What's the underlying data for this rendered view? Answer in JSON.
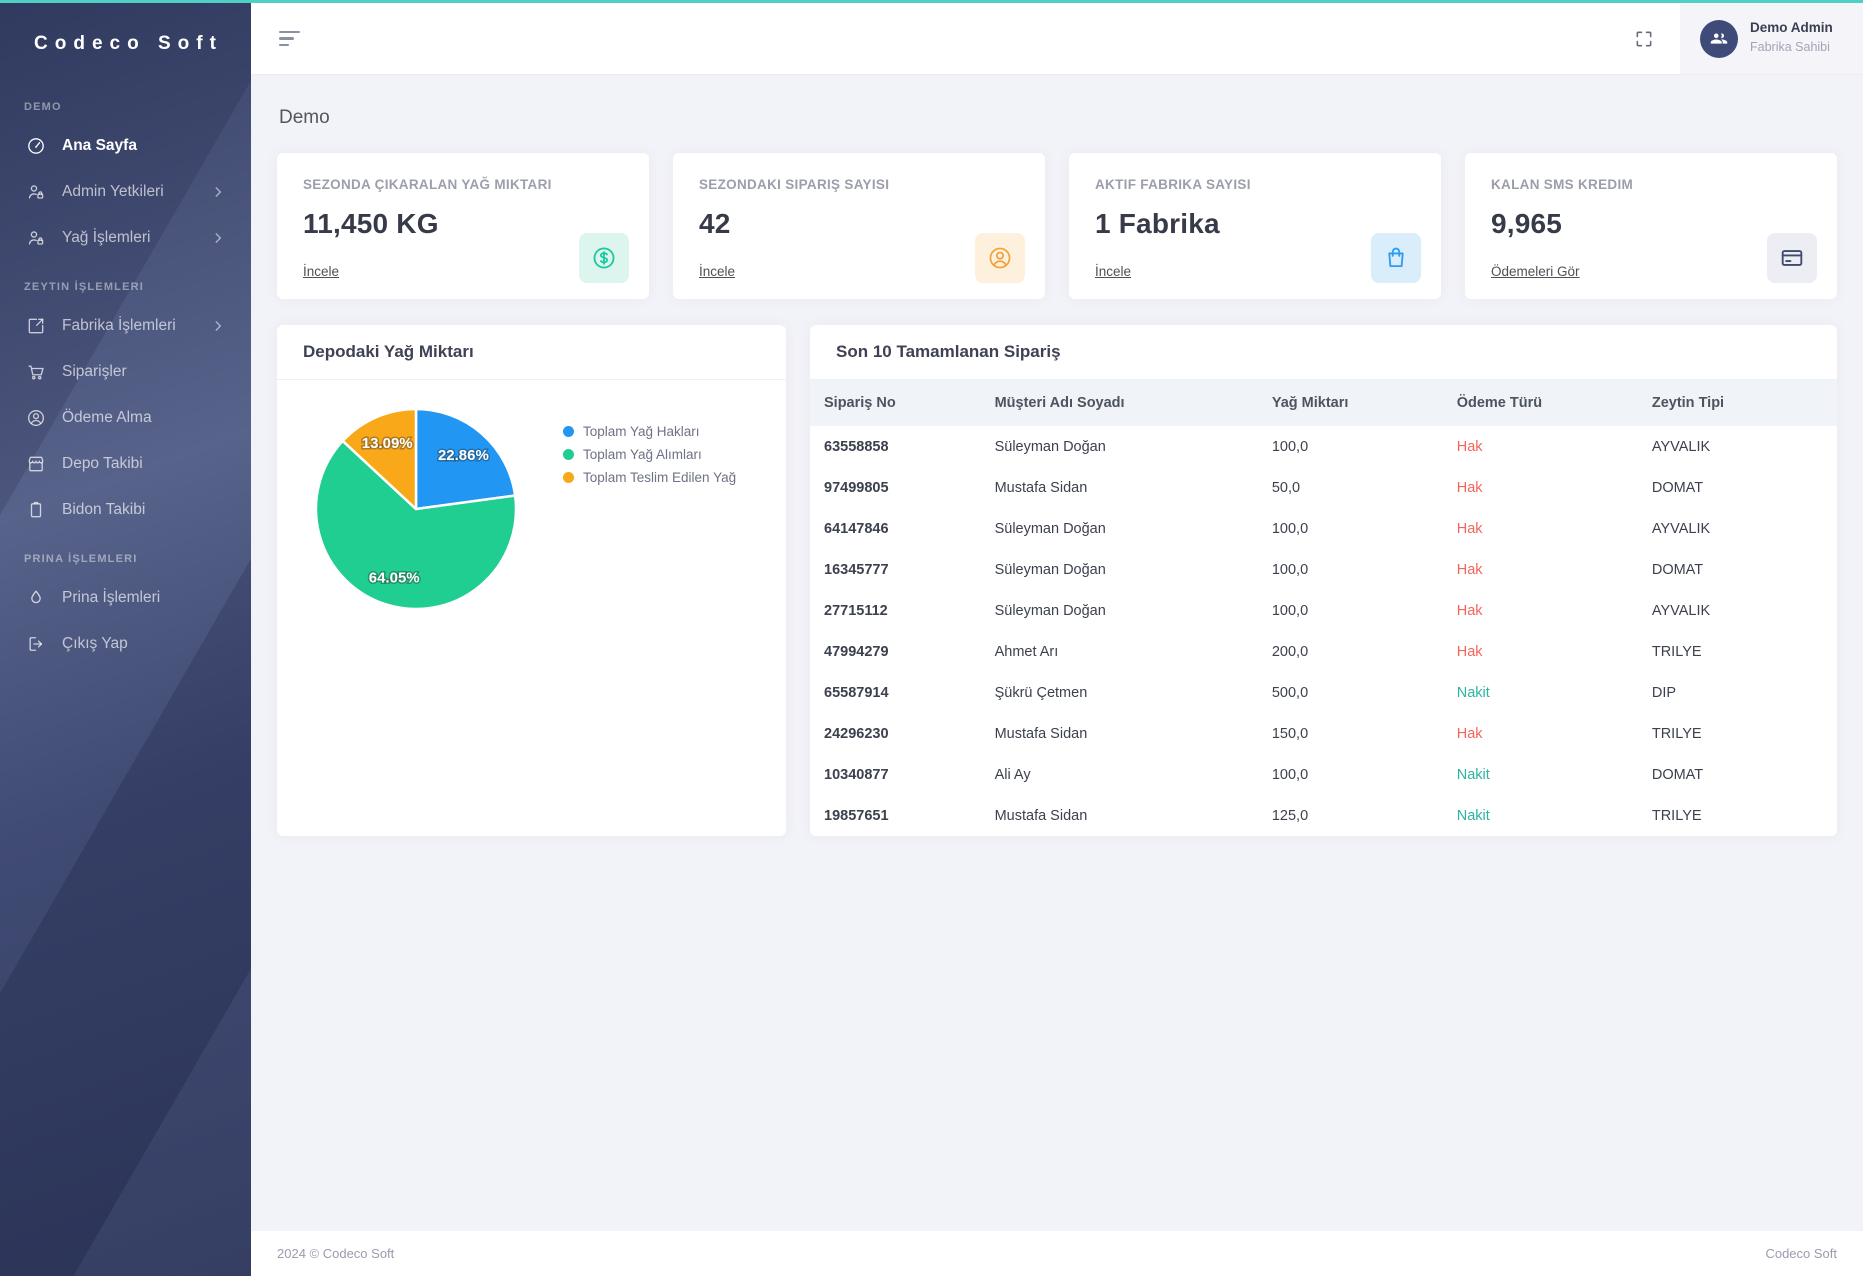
{
  "app": {
    "top_accent_color": "#4fd0c4"
  },
  "sidebar": {
    "logo": "Codeco Soft",
    "sections": [
      {
        "label": "DEMO",
        "items": [
          {
            "label": "Ana Sayfa",
            "icon": "dashboard-icon",
            "active": true,
            "chevron": false
          },
          {
            "label": "Admin Yetkileri",
            "icon": "user-lock-icon",
            "active": false,
            "chevron": true
          },
          {
            "label": "Yağ İşlemleri",
            "icon": "user-lock-icon",
            "active": false,
            "chevron": true
          }
        ]
      },
      {
        "label": "ZEYTIN İŞLEMLERI",
        "items": [
          {
            "label": "Fabrika İşlemleri",
            "icon": "box-arrow-icon",
            "active": false,
            "chevron": true
          },
          {
            "label": "Siparişler",
            "icon": "cart-icon",
            "active": false,
            "chevron": false
          },
          {
            "label": "Ödeme Alma",
            "icon": "user-circle-icon",
            "active": false,
            "chevron": false
          },
          {
            "label": "Depo Takibi",
            "icon": "storefront-icon",
            "active": false,
            "chevron": false
          },
          {
            "label": "Bidon Takibi",
            "icon": "canister-icon",
            "active": false,
            "chevron": false
          }
        ]
      },
      {
        "label": "PRINA İŞLEMLERI",
        "items": [
          {
            "label": "Prina İşlemleri",
            "icon": "droplet-icon",
            "active": false,
            "chevron": false
          },
          {
            "label": "Çıkış Yap",
            "icon": "logout-icon",
            "active": false,
            "chevron": false
          }
        ]
      }
    ]
  },
  "topbar": {
    "user": {
      "name": "Demo Admin",
      "role": "Fabrika Sahibi"
    }
  },
  "page": {
    "title": "Demo"
  },
  "stat_cards": [
    {
      "title": "SEZONDA ÇIKARALAN YAĞ MIKTARI",
      "value": "11,450 KG",
      "link": "İncele",
      "icon": "dollar-circle-icon",
      "icon_color": "#1fc8a0",
      "icon_bg": "#dcf5ee"
    },
    {
      "title": "SEZONDAKI SIPARIŞ SAYISI",
      "value": "42",
      "link": "İncele",
      "icon": "user-circle-icon",
      "icon_color": "#f0a33c",
      "icon_bg": "#fdf1dd"
    },
    {
      "title": "AKTIF FABRIKA SAYISI",
      "value": "1 Fabrika",
      "link": "İncele",
      "icon": "shopping-bag-icon",
      "icon_color": "#2d9cf0",
      "icon_bg": "#d9edfb"
    },
    {
      "title": "KALAN SMS KREDIM",
      "value": "9,965",
      "link": "Ödemeleri Gör",
      "icon": "credit-card-icon",
      "icon_color": "#3e4a6b",
      "icon_bg": "#eceef3"
    }
  ],
  "chart_panel": {
    "title": "Depodaki Yağ Miktarı"
  },
  "chart_data": {
    "type": "pie",
    "title": "Depodaki Yağ Miktarı",
    "slices": [
      {
        "label": "Toplam Yağ Hakları",
        "percent": 22.86,
        "color": "#2196f3"
      },
      {
        "label": "Toplam Yağ Alımları",
        "percent": 64.05,
        "color": "#21ce91"
      },
      {
        "label": "Toplam Teslim Edilen Yağ",
        "percent": 13.09,
        "color": "#f9a819"
      }
    ],
    "start_angle_deg": 0,
    "direction": "clockwise",
    "legend_position": "right",
    "label_format": "percent"
  },
  "orders_panel": {
    "title": "Son 10 Tamamlanan Sipariş",
    "columns": [
      "Sipariş No",
      "Müşteri Adı Soyadı",
      "Yağ Miktarı",
      "Ödeme Türü",
      "Zeytin Tipi"
    ],
    "payment_colors": {
      "Hak": "#f4645c",
      "Nakit": "#2db3a0"
    },
    "rows": [
      {
        "order_no": "63558858",
        "customer": "Süleyman Doğan",
        "amount": "100,0",
        "payment": "Hak",
        "olive_type": "AYVALIK"
      },
      {
        "order_no": "97499805",
        "customer": "Mustafa Sidan",
        "amount": "50,0",
        "payment": "Hak",
        "olive_type": "DOMAT"
      },
      {
        "order_no": "64147846",
        "customer": "Süleyman Doğan",
        "amount": "100,0",
        "payment": "Hak",
        "olive_type": "AYVALIK"
      },
      {
        "order_no": "16345777",
        "customer": "Süleyman Doğan",
        "amount": "100,0",
        "payment": "Hak",
        "olive_type": "DOMAT"
      },
      {
        "order_no": "27715112",
        "customer": "Süleyman Doğan",
        "amount": "100,0",
        "payment": "Hak",
        "olive_type": "AYVALIK"
      },
      {
        "order_no": "47994279",
        "customer": "Ahmet Arı",
        "amount": "200,0",
        "payment": "Hak",
        "olive_type": "TRILYE"
      },
      {
        "order_no": "65587914",
        "customer": "Şükrü Çetmen",
        "amount": "500,0",
        "payment": "Nakit",
        "olive_type": "DIP"
      },
      {
        "order_no": "24296230",
        "customer": "Mustafa Sidan",
        "amount": "150,0",
        "payment": "Hak",
        "olive_type": "TRILYE"
      },
      {
        "order_no": "10340877",
        "customer": "Ali Ay",
        "amount": "100,0",
        "payment": "Nakit",
        "olive_type": "DOMAT"
      },
      {
        "order_no": "19857651",
        "customer": "Mustafa Sidan",
        "amount": "125,0",
        "payment": "Nakit",
        "olive_type": "TRILYE"
      }
    ]
  },
  "footer": {
    "left": "2024 © Codeco Soft",
    "right": "Codeco Soft"
  }
}
